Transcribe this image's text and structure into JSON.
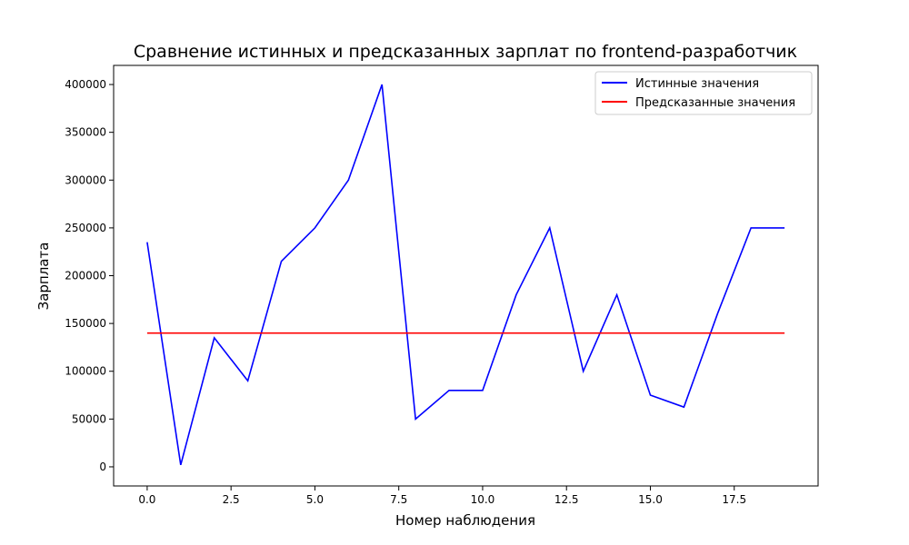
{
  "chart_data": {
    "type": "line",
    "title": "Сравнение истинных и предсказанных зарплат по frontend-разработчик",
    "xlabel": "Номер наблюдения",
    "ylabel": "Зарплата",
    "xlim": [
      -1,
      20
    ],
    "ylim": [
      -20000,
      420000
    ],
    "xticks": [
      0.0,
      2.5,
      5.0,
      7.5,
      10.0,
      12.5,
      15.0,
      17.5
    ],
    "xtick_labels": [
      "0.0",
      "2.5",
      "5.0",
      "7.5",
      "10.0",
      "12.5",
      "15.0",
      "17.5"
    ],
    "yticks": [
      0,
      50000,
      100000,
      150000,
      200000,
      250000,
      300000,
      350000,
      400000
    ],
    "ytick_labels": [
      "0",
      "50000",
      "100000",
      "150000",
      "200000",
      "250000",
      "300000",
      "350000",
      "400000"
    ],
    "legend_position": "top-right",
    "grid": false,
    "x": [
      0,
      1,
      2,
      3,
      4,
      5,
      6,
      7,
      8,
      9,
      10,
      11,
      12,
      13,
      14,
      15,
      16,
      17,
      18,
      19
    ],
    "series": [
      {
        "name": "Истинные значения",
        "color": "#0000ff",
        "values": [
          235000,
          2000,
          135000,
          90000,
          215000,
          250000,
          300000,
          400000,
          50000,
          80000,
          80000,
          180000,
          250000,
          100000,
          180000,
          75000,
          62500,
          160000,
          250000,
          250000
        ]
      },
      {
        "name": "Предсказанные значения",
        "color": "#ff0000",
        "values": [
          140000,
          140000,
          140000,
          140000,
          140000,
          140000,
          140000,
          140000,
          140000,
          140000,
          140000,
          140000,
          140000,
          140000,
          140000,
          140000,
          140000,
          140000,
          140000,
          140000
        ]
      }
    ]
  }
}
